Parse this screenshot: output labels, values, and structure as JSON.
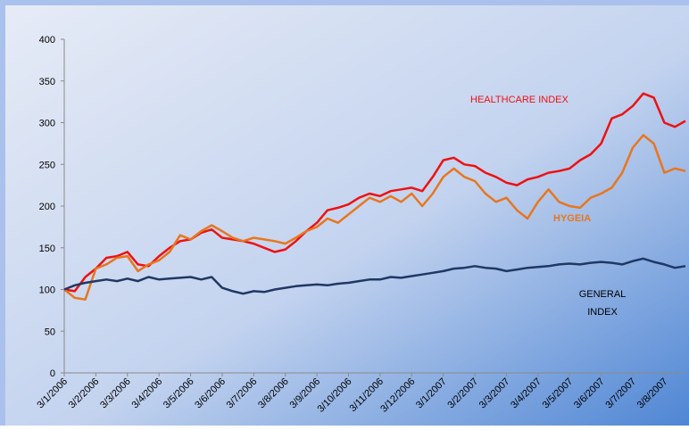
{
  "chart_data": {
    "type": "line",
    "categories": [
      "3/1/2006",
      null,
      null,
      "3/2/2006",
      null,
      null,
      "3/3/2006",
      null,
      null,
      "3/4/2006",
      null,
      null,
      "3/5/2006",
      null,
      null,
      "3/6/2006",
      null,
      null,
      "3/7/2006",
      null,
      null,
      "3/8/2006",
      null,
      null,
      "3/9/2006",
      null,
      null,
      "3/10/2006",
      null,
      null,
      "3/11/2006",
      null,
      null,
      "3/12/2006",
      null,
      null,
      "3/1/2007",
      null,
      null,
      "3/2/2007",
      null,
      null,
      "3/3/2007",
      null,
      null,
      "3/4/2007",
      null,
      null,
      "3/5/2007",
      null,
      null,
      "3/6/2007",
      null,
      null,
      "3/7/2007",
      null,
      null,
      "3/8/2007",
      null,
      null
    ],
    "series": [
      {
        "name": "HEALTHCARE INDEX",
        "color": "#ee1111",
        "values": [
          100,
          98,
          115,
          125,
          138,
          140,
          145,
          130,
          128,
          140,
          150,
          158,
          160,
          168,
          172,
          162,
          160,
          158,
          155,
          150,
          145,
          148,
          158,
          170,
          180,
          195,
          198,
          202,
          210,
          215,
          212,
          218,
          220,
          222,
          218,
          235,
          255,
          258,
          250,
          248,
          240,
          235,
          228,
          225,
          232,
          235,
          240,
          242,
          245,
          255,
          262,
          275,
          305,
          310,
          320,
          335,
          330,
          300,
          295,
          302
        ]
      },
      {
        "name": "HYGEIA",
        "color": "#e8761e",
        "values": [
          100,
          90,
          88,
          125,
          130,
          138,
          140,
          122,
          130,
          135,
          145,
          165,
          160,
          170,
          177,
          170,
          162,
          158,
          162,
          160,
          158,
          155,
          162,
          170,
          175,
          185,
          180,
          190,
          200,
          210,
          205,
          212,
          205,
          215,
          200,
          215,
          235,
          245,
          235,
          230,
          215,
          205,
          210,
          195,
          185,
          205,
          220,
          205,
          200,
          198,
          210,
          215,
          222,
          240,
          270,
          285,
          275,
          240,
          245,
          242
        ]
      },
      {
        "name": "GENERAL INDEX",
        "color": "#1f3864",
        "lines": [
          "GENERAL",
          "INDEX"
        ],
        "values": [
          100,
          105,
          108,
          110,
          112,
          110,
          113,
          110,
          115,
          112,
          113,
          114,
          115,
          112,
          115,
          102,
          98,
          95,
          98,
          97,
          100,
          102,
          104,
          105,
          106,
          105,
          107,
          108,
          110,
          112,
          112,
          115,
          114,
          116,
          118,
          120,
          122,
          125,
          126,
          128,
          126,
          125,
          122,
          124,
          126,
          127,
          128,
          130,
          131,
          130,
          132,
          133,
          132,
          130,
          134,
          137,
          133,
          130,
          126,
          128
        ]
      }
    ],
    "ylim": [
      0,
      400
    ],
    "yticks": [
      0,
      50,
      100,
      150,
      200,
      250,
      300,
      350,
      400
    ],
    "grid": false
  }
}
